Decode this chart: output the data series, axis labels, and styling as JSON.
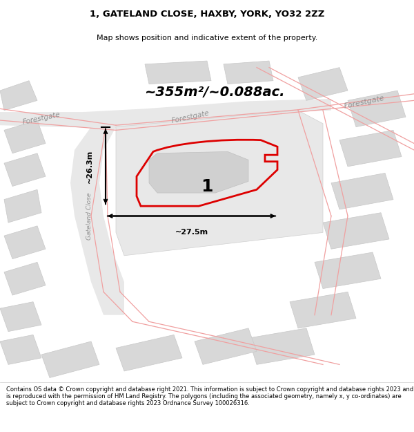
{
  "title_line1": "1, GATELAND CLOSE, HAXBY, YORK, YO32 2ZZ",
  "title_line2": "Map shows position and indicative extent of the property.",
  "area_text": "~355m²/~0.088ac.",
  "dim_horizontal": "~27.5m",
  "dim_vertical": "~26.3m",
  "plot_number": "1",
  "footer_text": "Contains OS data © Crown copyright and database right 2021. This information is subject to Crown copyright and database rights 2023 and is reproduced with the permission of HM Land Registry. The polygons (including the associated geometry, namely x, y co-ordinates) are subject to Crown copyright and database rights 2023 Ordnance Survey 100026316.",
  "map_bg": "#f5f5f5",
  "plot_fill": "none",
  "plot_border": "#dd0000",
  "road_line_color": "#f0a0a0",
  "road_fill_color": "#e8e8e8",
  "building_fill": "#d8d8d8",
  "building_edge": "#c8c8c8",
  "dim_line_color": "#000000",
  "text_color": "#000000",
  "road_label_color": "#909090",
  "white": "#ffffff"
}
